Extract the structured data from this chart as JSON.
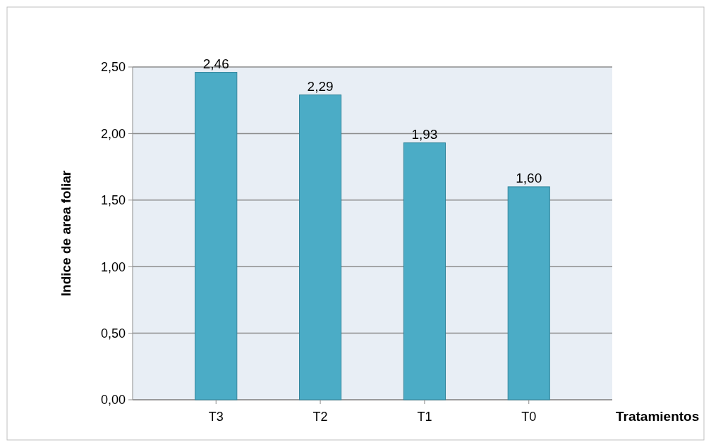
{
  "chart_data": {
    "type": "bar",
    "xlabel": "Tratamientos",
    "ylabel": "Indice de area foliar",
    "categories": [
      "T3",
      "T2",
      "T1",
      "T0"
    ],
    "values": [
      2.46,
      2.29,
      1.93,
      1.6
    ],
    "value_labels": [
      "2,46",
      "2,29",
      "1,93",
      "1,60"
    ],
    "color": "#4bacc6",
    "ylim": [
      0,
      2.5
    ],
    "yticks": [
      {
        "value": 0,
        "label": "0,00"
      },
      {
        "value": 0.5,
        "label": "0,50"
      },
      {
        "value": 1,
        "label": "1,00"
      },
      {
        "value": 1.5,
        "label": "1,50"
      },
      {
        "value": 2,
        "label": "2,00"
      },
      {
        "value": 2.5,
        "label": "2,50"
      }
    ],
    "grid": "y"
  }
}
